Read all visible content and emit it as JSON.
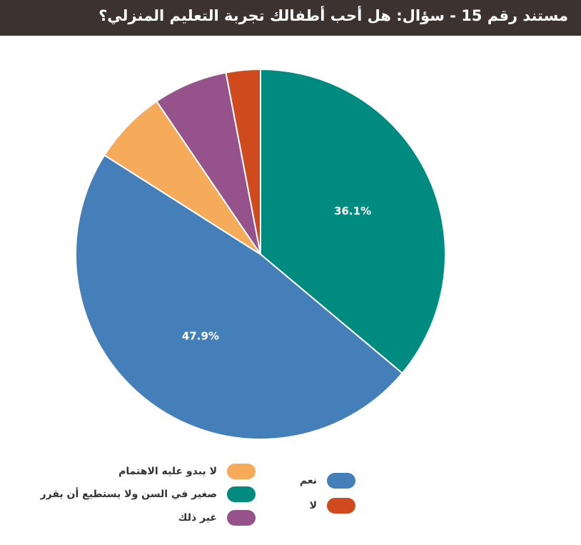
{
  "header": {
    "title": "مستند رقم 15 - سؤال: هل أحب أطفالك تجربة التعليم المنزلي؟"
  },
  "chart_data": {
    "type": "pie",
    "slices": [
      {
        "label": "صغير في السن ولا يستطيع أن يقرر",
        "value": 36.1,
        "color": "#008b80",
        "display": "36.1%"
      },
      {
        "label": "نعم",
        "value": 47.9,
        "color": "#447fb9",
        "display": "47.9%"
      },
      {
        "label": "لا يبدو عليه الاهتمام",
        "value": 6.5,
        "color": "#f6ab5b",
        "display": ""
      },
      {
        "label": "غير ذلك",
        "value": 6.5,
        "color": "#96538b",
        "display": ""
      },
      {
        "label": "لا",
        "value": 3.0,
        "color": "#cf4a1c",
        "display": ""
      }
    ],
    "legend": {
      "placement": "bottom",
      "entries": [
        {
          "label": "نعم",
          "color": "#447fb9"
        },
        {
          "label": "لا",
          "color": "#cf4a1c"
        },
        {
          "label": "لا يبدو عليه الاهتمام",
          "color": "#f6ab5b"
        },
        {
          "label": "صغير في السن ولا يستطيع أن يقرر",
          "color": "#008b80"
        },
        {
          "label": "غير ذلك",
          "color": "#96538b"
        }
      ]
    }
  }
}
